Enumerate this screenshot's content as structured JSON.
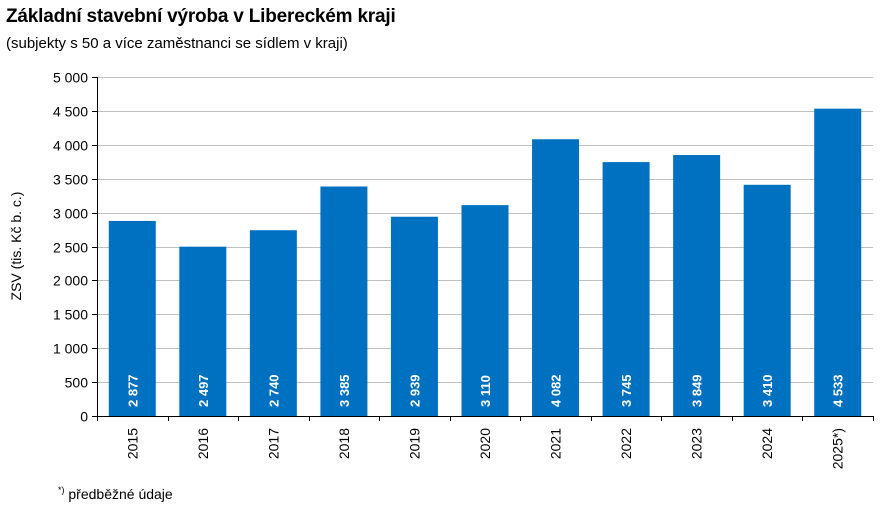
{
  "title": "Základní stavební výroba v Libereckém kraji",
  "subtitle": "(subjekty s 50 a více zaměstnanci se sídlem v kraji)",
  "footnote": {
    "marker": "*)",
    "text": "předběžné údaje"
  },
  "colors": {
    "bar": "#0070C0",
    "grid": "#BFBFBF",
    "axis": "#000000",
    "label": "#FFFFFF"
  },
  "chart_data": {
    "type": "bar",
    "title": "Základní stavební výroba v Libereckém kraji",
    "subtitle": "(subjekty s 50 a více zaměstnanci se sídlem v kraji)",
    "xlabel": "",
    "ylabel": "ZSV (tis. Kč b. c.)",
    "ylim": [
      0,
      5000
    ],
    "yticks": [
      0,
      500,
      1000,
      1500,
      2000,
      2500,
      3000,
      3500,
      4000,
      4500,
      5000
    ],
    "ytick_labels": [
      "0",
      "500",
      "1 000",
      "1 500",
      "2 000",
      "2 500",
      "3 000",
      "3 500",
      "4 000",
      "4 500",
      "5 000"
    ],
    "grid": true,
    "legend": null,
    "categories": [
      "2015",
      "2016",
      "2017",
      "2018",
      "2019",
      "2020",
      "2021",
      "2022",
      "2023",
      "2024",
      "2025*)"
    ],
    "values": [
      2877,
      2497,
      2740,
      3385,
      2939,
      3110,
      4082,
      3745,
      3849,
      3410,
      4533
    ],
    "value_labels": [
      "2 877",
      "2 497",
      "2 740",
      "3 385",
      "2 939",
      "3 110",
      "4 082",
      "3 745",
      "3 849",
      "3 410",
      "4 533"
    ],
    "annotations": [
      "*) předběžné údaje"
    ]
  }
}
